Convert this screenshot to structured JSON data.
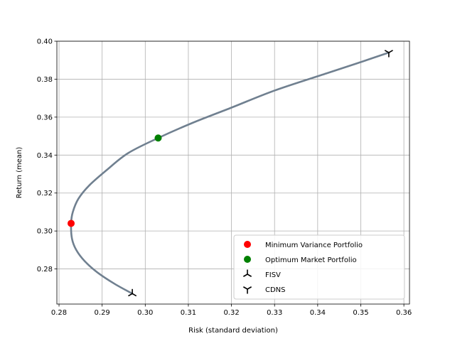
{
  "chart_data": {
    "type": "scatter",
    "xlabel": "Risk (standard deviation)",
    "ylabel": "Return (mean)",
    "xlim": [
      0.2795,
      0.3613
    ],
    "ylim": [
      0.2615,
      0.4
    ],
    "xticks": [
      0.28,
      0.29,
      0.3,
      0.31,
      0.32,
      0.33,
      0.34,
      0.35,
      0.36
    ],
    "xtick_labels": [
      "0.28",
      "0.29",
      "0.30",
      "0.31",
      "0.32",
      "0.33",
      "0.34",
      "0.35",
      "0.36"
    ],
    "yticks": [
      0.28,
      0.3,
      0.32,
      0.34,
      0.36,
      0.38,
      0.4
    ],
    "ytick_labels": [
      "0.28",
      "0.30",
      "0.32",
      "0.34",
      "0.36",
      "0.38",
      "0.40"
    ],
    "grid": true,
    "legend_position": "lower-right",
    "frontier": {
      "color": "#708090",
      "points": [
        [
          0.297,
          0.267
        ],
        [
          0.293,
          0.272
        ],
        [
          0.289,
          0.278
        ],
        [
          0.286,
          0.284
        ],
        [
          0.284,
          0.29
        ],
        [
          0.283,
          0.296
        ],
        [
          0.2828,
          0.304
        ],
        [
          0.2832,
          0.31
        ],
        [
          0.2845,
          0.317
        ],
        [
          0.287,
          0.324
        ],
        [
          0.291,
          0.332
        ],
        [
          0.296,
          0.341
        ],
        [
          0.303,
          0.349
        ],
        [
          0.311,
          0.357
        ],
        [
          0.32,
          0.365
        ],
        [
          0.33,
          0.374
        ],
        [
          0.342,
          0.383
        ],
        [
          0.35,
          0.389
        ],
        [
          0.3565,
          0.394
        ]
      ]
    },
    "series": [
      {
        "name": "Minimum Variance Portfolio",
        "marker": "circle",
        "color": "#ff0000",
        "x": 0.2828,
        "y": 0.304
      },
      {
        "name": "Optimum Market Portfolio",
        "marker": "circle",
        "color": "#008000",
        "x": 0.303,
        "y": 0.349
      },
      {
        "name": "FISV",
        "marker": "tri_up",
        "color": "#000000",
        "x": 0.297,
        "y": 0.267
      },
      {
        "name": "CDNS",
        "marker": "tri_down",
        "color": "#000000",
        "x": 0.3565,
        "y": 0.394
      }
    ]
  }
}
